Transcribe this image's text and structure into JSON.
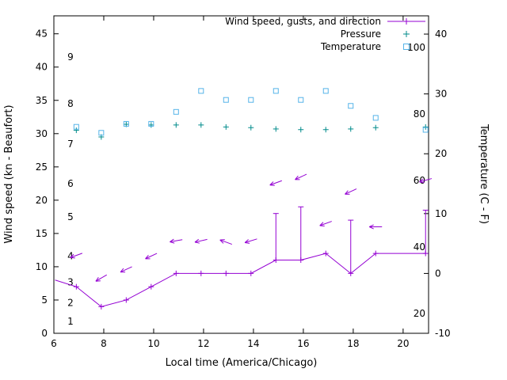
{
  "page": {
    "background": "#ffffff"
  },
  "chart_data": {
    "type": "line",
    "title": "",
    "xlabel": "Local time (America/Chicago)",
    "ylabel_left": "Wind speed (kn - Beaufort)",
    "ylabel_right": "Temperature (C - F)",
    "xlim": [
      6,
      21.02
    ],
    "x_ticks": [
      6,
      8,
      10,
      12,
      14,
      16,
      18,
      20
    ],
    "ylim_left_kn": [
      0,
      47.7
    ],
    "left_ticks_kn": [
      0,
      5,
      10,
      15,
      20,
      25,
      30,
      35,
      40,
      45
    ],
    "beaufort_labels": [
      {
        "label": "1",
        "kn": 1.8
      },
      {
        "label": "2",
        "kn": 4.6
      },
      {
        "label": "3",
        "kn": 7.7
      },
      {
        "label": "4",
        "kn": 11.6
      },
      {
        "label": "5",
        "kn": 17.5
      },
      {
        "label": "6",
        "kn": 22.5
      },
      {
        "label": "7",
        "kn": 28.4
      },
      {
        "label": "8",
        "kn": 34.5
      },
      {
        "label": "9",
        "kn": 41.5
      }
    ],
    "ylim_right_c": [
      -10,
      43.05
    ],
    "right_ticks_c": [
      -10,
      0,
      10,
      20,
      30,
      40
    ],
    "fahrenheit_labels": [
      {
        "label": "20",
        "f": 20
      },
      {
        "label": "40",
        "f": 40
      },
      {
        "label": "60",
        "f": 60
      },
      {
        "label": "80",
        "f": 80
      },
      {
        "label": "100",
        "f": 100
      }
    ],
    "grid": false,
    "legend_position": "top-right-inside",
    "legend": [
      {
        "series": "wind",
        "label": "Wind speed, gusts, and direction",
        "marker": "errorbar-line"
      },
      {
        "series": "pressure",
        "label": "Pressure",
        "marker": "plus"
      },
      {
        "series": "temperature",
        "label": "Temperature",
        "marker": "square"
      }
    ],
    "series": {
      "wind": {
        "line_start": {
          "x": 6.05,
          "kn": 8
        },
        "x": [
          6.9,
          7.9,
          8.9,
          9.9,
          10.9,
          11.9,
          12.9,
          13.9,
          14.9,
          15.9,
          16.9,
          17.9,
          18.9,
          20.9
        ],
        "speed_kn": [
          7,
          4,
          5,
          7,
          9,
          9,
          9,
          9,
          11,
          11,
          12,
          9,
          12,
          12
        ],
        "gust_kn": [
          7,
          4,
          5,
          7,
          9,
          9,
          9,
          9,
          18,
          19,
          12,
          17,
          12,
          18.5
        ]
      },
      "wind_direction_arrows": [
        {
          "x": 6.9,
          "kn": 11.7,
          "angle_deg": 200
        },
        {
          "x": 7.9,
          "kn": 8.3,
          "angle_deg": 210
        },
        {
          "x": 8.9,
          "kn": 9.6,
          "angle_deg": 205
        },
        {
          "x": 9.9,
          "kn": 11.6,
          "angle_deg": 205
        },
        {
          "x": 10.9,
          "kn": 13.9,
          "angle_deg": 190
        },
        {
          "x": 11.9,
          "kn": 13.9,
          "angle_deg": 193
        },
        {
          "x": 12.9,
          "kn": 13.7,
          "angle_deg": 160
        },
        {
          "x": 13.9,
          "kn": 13.9,
          "angle_deg": 197
        },
        {
          "x": 14.9,
          "kn": 22.6,
          "angle_deg": 200
        },
        {
          "x": 15.9,
          "kn": 23.5,
          "angle_deg": 205
        },
        {
          "x": 16.9,
          "kn": 16.5,
          "angle_deg": 200
        },
        {
          "x": 17.9,
          "kn": 21.3,
          "angle_deg": 205
        },
        {
          "x": 18.9,
          "kn": 16.0,
          "angle_deg": 180
        },
        {
          "x": 20.9,
          "kn": 23.0,
          "angle_deg": 195
        }
      ],
      "pressure": {
        "x": [
          6.9,
          7.9,
          8.9,
          9.9,
          10.9,
          11.9,
          12.9,
          13.9,
          14.9,
          15.9,
          16.9,
          17.9,
          18.9,
          20.9
        ],
        "values": [
          30.5,
          29.5,
          31.4,
          31.3,
          31.3,
          31.3,
          31.0,
          30.9,
          30.7,
          30.6,
          30.6,
          30.7,
          30.9,
          31.0
        ]
      },
      "temperature": {
        "x": [
          6.9,
          7.9,
          8.9,
          9.9,
          10.9,
          11.9,
          12.9,
          13.9,
          14.9,
          15.9,
          16.9,
          17.9,
          18.9,
          20.9
        ],
        "values_c": [
          24.5,
          23.5,
          25,
          25,
          27,
          30.5,
          29,
          29,
          30.5,
          29,
          30.5,
          28,
          26,
          24
        ]
      }
    },
    "colors": {
      "wind": "#9400d3",
      "pressure": "#008b8b",
      "temperature": "#56b4e9",
      "axis": "#000000",
      "background": "#ffffff"
    }
  }
}
